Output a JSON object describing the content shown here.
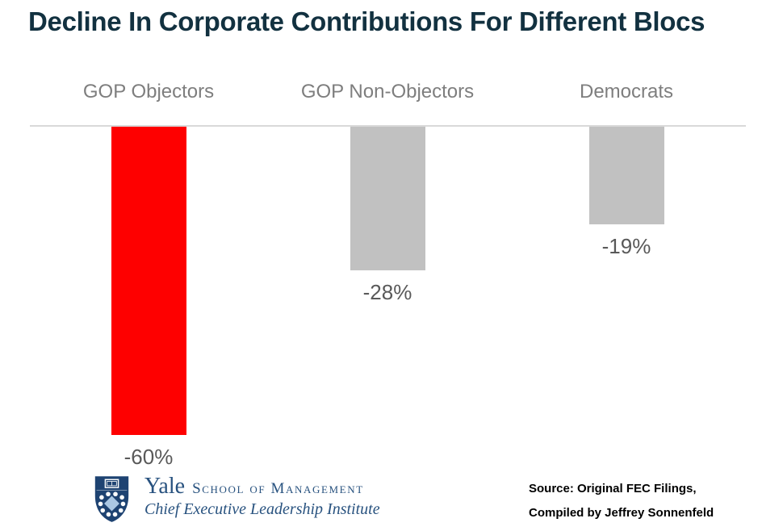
{
  "title": "Decline In Corporate Contributions For Different Blocs",
  "chart_data": {
    "type": "bar",
    "orientation": "vertical-downward",
    "title": "Decline In Corporate Contributions For Different Blocs",
    "categories": [
      "GOP Objectors",
      "GOP Non-Objectors",
      "Democrats"
    ],
    "values": [
      -60,
      -28,
      -19
    ],
    "value_labels": [
      "-60%",
      "-28%",
      "-19%"
    ],
    "bar_colors": [
      "#fe0000",
      "#c1c1c1",
      "#c1c1c1"
    ],
    "xlabel": "",
    "ylabel": "",
    "ylim": [
      -60,
      0
    ],
    "gridlines": false,
    "baseline_visible": true
  },
  "footer": {
    "logo": {
      "org": "Yale",
      "school": "School of Management",
      "institute": "Chief Executive Leadership Institute",
      "shield_icon": "yale-som-shield",
      "brand_color": "#28527f",
      "shield_color": "#1e4372"
    },
    "source_line1": "Source: Original FEC Filings,",
    "source_line2": "Compiled by Jeffrey Sonnenfeld"
  },
  "colors": {
    "title_text": "#123140",
    "category_label": "#7e7e7e",
    "value_label": "#595959",
    "highlight_bar": "#fe0000",
    "neutral_bar": "#c1c1c1",
    "baseline": "#d9d9d9",
    "background": "#ffffff"
  }
}
